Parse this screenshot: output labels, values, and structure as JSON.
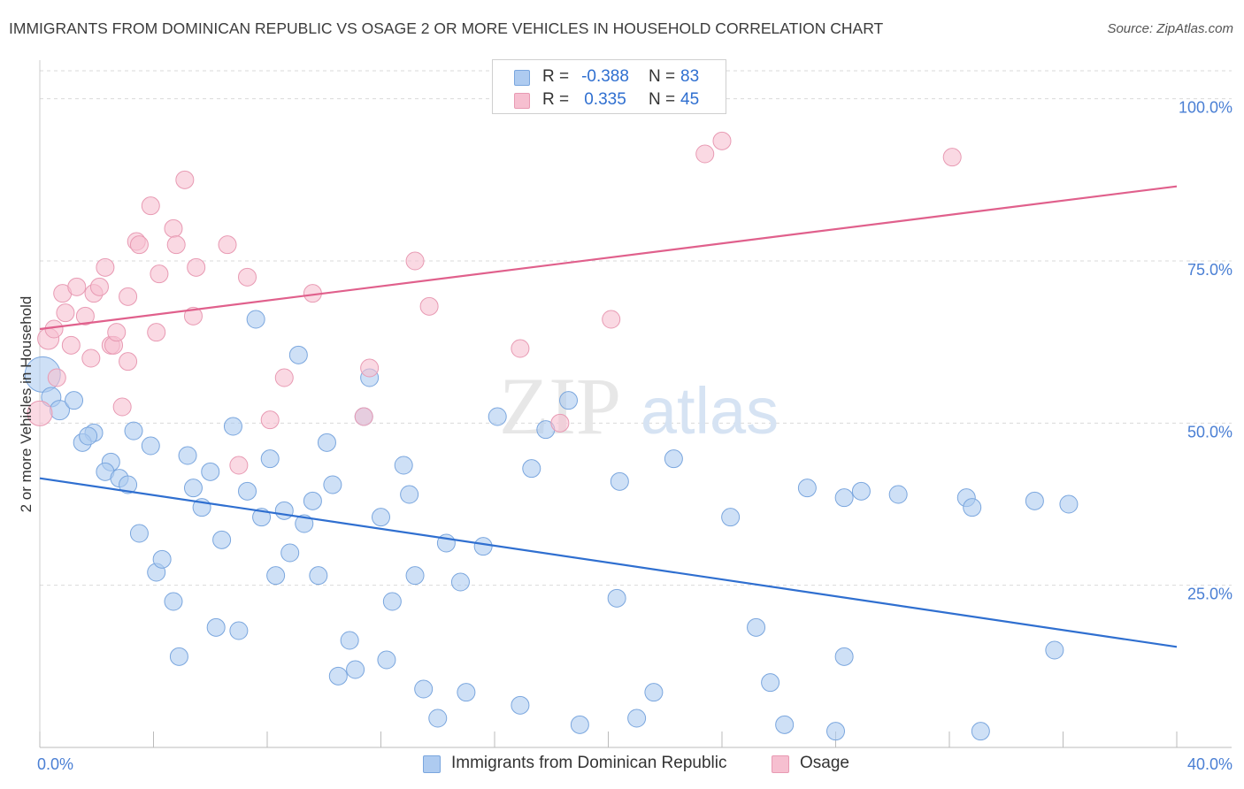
{
  "title": "IMMIGRANTS FROM DOMINICAN REPUBLIC VS OSAGE 2 OR MORE VEHICLES IN HOUSEHOLD CORRELATION CHART",
  "source": "Source: ZipAtlas.com",
  "watermark": {
    "zip": "ZIP",
    "atlas": "atlas"
  },
  "legend_top": {
    "rows": [
      {
        "label": "R =",
        "r": "-0.388",
        "n_label": "N =",
        "n": "83"
      },
      {
        "label": "R =",
        "r": "0.335",
        "n_label": "N =",
        "n": "45"
      }
    ]
  },
  "colors": {
    "blue_fill": "#aecbf0",
    "blue_stroke": "#7aa6de",
    "blue_line": "#2f6fd0",
    "pink_fill": "#f6bfd0",
    "pink_stroke": "#e89ab3",
    "pink_line": "#e0608c",
    "grid": "#d9d9d9",
    "tick_label": "#4a7fd4"
  },
  "chart_data": {
    "type": "scatter",
    "xlabel": "",
    "ylabel": "2 or more Vehicles in Household",
    "xlim": [
      0,
      40
    ],
    "ylim": [
      0,
      105
    ],
    "x_tick_labels": [
      {
        "value": 0,
        "label": "0.0%"
      },
      {
        "value": 40,
        "label": "40.0%"
      }
    ],
    "y_tick_labels": [
      {
        "value": 25,
        "label": "25.0%"
      },
      {
        "value": 50,
        "label": "50.0%"
      },
      {
        "value": 75,
        "label": "75.0%"
      },
      {
        "value": 100,
        "label": "100.0%"
      }
    ],
    "legend_position": "bottom",
    "grid": true,
    "series": [
      {
        "name": "Immigrants from Dominican Republic",
        "color": "blue",
        "trend": {
          "x": [
            0,
            40
          ],
          "y": [
            41.5,
            15.5
          ]
        },
        "points": [
          [
            0.1,
            57.5,
            20
          ],
          [
            0.4,
            54,
            11
          ],
          [
            0.7,
            52,
            11
          ],
          [
            1.2,
            53.5,
            10
          ],
          [
            1.9,
            48.5,
            10
          ],
          [
            1.5,
            47,
            10
          ],
          [
            1.7,
            48,
            10
          ],
          [
            2.5,
            44,
            10
          ],
          [
            2.3,
            42.5,
            10
          ],
          [
            2.8,
            41.5,
            10
          ],
          [
            3.1,
            40.5,
            10
          ],
          [
            3.3,
            48.8,
            10
          ],
          [
            3.5,
            33,
            10
          ],
          [
            3.9,
            46.5,
            10
          ],
          [
            4.1,
            27,
            10
          ],
          [
            4.3,
            29,
            10
          ],
          [
            4.7,
            22.5,
            10
          ],
          [
            4.9,
            14,
            10
          ],
          [
            5.2,
            45,
            10
          ],
          [
            5.4,
            40,
            10
          ],
          [
            5.7,
            37,
            10
          ],
          [
            6.0,
            42.5,
            10
          ],
          [
            6.2,
            18.5,
            10
          ],
          [
            6.4,
            32,
            10
          ],
          [
            6.8,
            49.5,
            10
          ],
          [
            7.0,
            18,
            10
          ],
          [
            7.3,
            39.5,
            10
          ],
          [
            7.6,
            66,
            10
          ],
          [
            7.8,
            35.5,
            10
          ],
          [
            8.1,
            44.5,
            10
          ],
          [
            8.3,
            26.5,
            10
          ],
          [
            8.6,
            36.5,
            10
          ],
          [
            8.8,
            30,
            10
          ],
          [
            9.1,
            60.5,
            10
          ],
          [
            9.3,
            34.5,
            10
          ],
          [
            9.6,
            38,
            10
          ],
          [
            9.8,
            26.5,
            10
          ],
          [
            10.1,
            47,
            10
          ],
          [
            10.3,
            40.5,
            10
          ],
          [
            10.5,
            11,
            10
          ],
          [
            10.9,
            16.5,
            10
          ],
          [
            11.1,
            12,
            10
          ],
          [
            11.4,
            51,
            10
          ],
          [
            11.6,
            57,
            10
          ],
          [
            12.0,
            35.5,
            10
          ],
          [
            12.2,
            13.5,
            10
          ],
          [
            12.4,
            22.5,
            10
          ],
          [
            12.8,
            43.5,
            10
          ],
          [
            13.0,
            39,
            10
          ],
          [
            13.2,
            26.5,
            10
          ],
          [
            13.5,
            9,
            10
          ],
          [
            14.0,
            4.5,
            10
          ],
          [
            14.3,
            31.5,
            10
          ],
          [
            14.8,
            25.5,
            10
          ],
          [
            15.0,
            8.5,
            10
          ],
          [
            15.6,
            31,
            10
          ],
          [
            16.1,
            51,
            10
          ],
          [
            16.9,
            6.5,
            10
          ],
          [
            17.3,
            43,
            10
          ],
          [
            17.8,
            49,
            10
          ],
          [
            18.6,
            53.5,
            10
          ],
          [
            19.0,
            3.5,
            10
          ],
          [
            20.3,
            23,
            10
          ],
          [
            20.4,
            41,
            10
          ],
          [
            21.0,
            4.5,
            10
          ],
          [
            21.6,
            8.5,
            10
          ],
          [
            22.3,
            44.5,
            10
          ],
          [
            24.3,
            35.5,
            10
          ],
          [
            25.2,
            18.5,
            10
          ],
          [
            25.7,
            10,
            10
          ],
          [
            26.2,
            3.5,
            10
          ],
          [
            27.0,
            40,
            10
          ],
          [
            28.0,
            2.5,
            10
          ],
          [
            28.3,
            38.5,
            10
          ],
          [
            28.3,
            14,
            10
          ],
          [
            28.9,
            39.5,
            10
          ],
          [
            30.2,
            39,
            10
          ],
          [
            32.6,
            38.5,
            10
          ],
          [
            32.8,
            37,
            10
          ],
          [
            33.1,
            2.5,
            10
          ],
          [
            35.0,
            38,
            10
          ],
          [
            35.7,
            15,
            10
          ],
          [
            36.2,
            37.5,
            10
          ]
        ]
      },
      {
        "name": "Osage",
        "color": "pink",
        "trend": {
          "x": [
            0,
            40
          ],
          "y": [
            64.5,
            86.5
          ]
        },
        "points": [
          [
            0.0,
            51.5,
            14
          ],
          [
            0.3,
            63,
            12
          ],
          [
            0.5,
            64.5,
            10
          ],
          [
            0.6,
            57,
            10
          ],
          [
            0.8,
            70,
            10
          ],
          [
            0.9,
            67,
            10
          ],
          [
            1.1,
            62,
            10
          ],
          [
            1.3,
            71,
            10
          ],
          [
            1.6,
            66.5,
            10
          ],
          [
            1.8,
            60,
            10
          ],
          [
            1.9,
            70,
            10
          ],
          [
            2.1,
            71,
            10
          ],
          [
            2.3,
            74,
            10
          ],
          [
            2.5,
            62,
            10
          ],
          [
            2.6,
            62,
            10
          ],
          [
            2.7,
            64,
            10
          ],
          [
            2.9,
            52.5,
            10
          ],
          [
            3.1,
            59.5,
            10
          ],
          [
            3.1,
            69.5,
            10
          ],
          [
            3.4,
            78,
            10
          ],
          [
            3.5,
            77.5,
            10
          ],
          [
            3.9,
            83.5,
            10
          ],
          [
            4.1,
            64,
            10
          ],
          [
            4.2,
            73,
            10
          ],
          [
            4.7,
            80,
            10
          ],
          [
            4.8,
            77.5,
            10
          ],
          [
            5.1,
            87.5,
            10
          ],
          [
            5.4,
            66.5,
            10
          ],
          [
            5.5,
            74,
            10
          ],
          [
            6.6,
            77.5,
            10
          ],
          [
            7.0,
            43.5,
            10
          ],
          [
            7.3,
            72.5,
            10
          ],
          [
            8.1,
            50.5,
            10
          ],
          [
            8.6,
            57,
            10
          ],
          [
            9.6,
            70,
            10
          ],
          [
            11.4,
            51,
            10
          ],
          [
            11.6,
            58.5,
            10
          ],
          [
            13.2,
            75,
            10
          ],
          [
            13.7,
            68,
            10
          ],
          [
            16.9,
            61.5,
            10
          ],
          [
            18.3,
            50,
            10
          ],
          [
            20.1,
            66,
            10
          ],
          [
            23.4,
            91.5,
            10
          ],
          [
            24.0,
            93.5,
            10
          ],
          [
            32.1,
            91,
            10
          ]
        ]
      }
    ]
  }
}
